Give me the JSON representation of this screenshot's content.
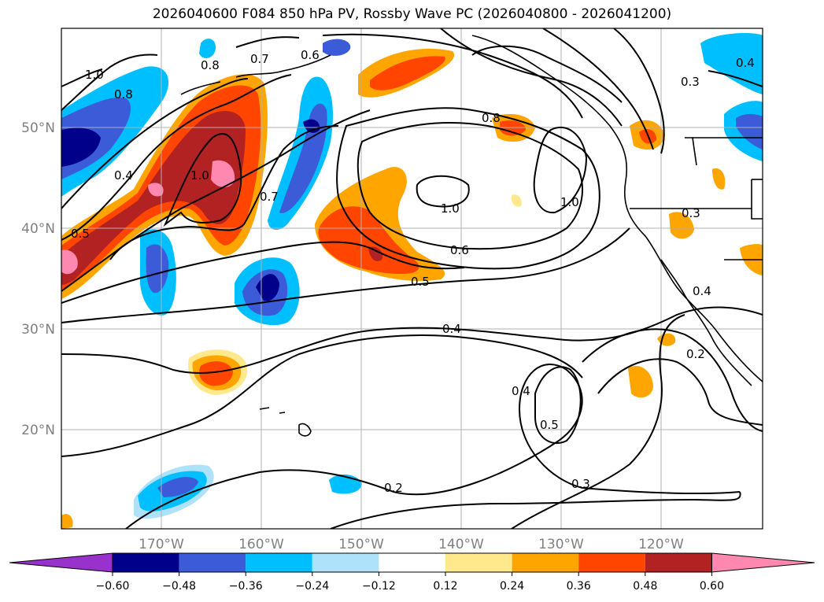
{
  "title": "2026040600 F084 850 hPa PV, Rossby Wave PC (2026040800 - 2026041200)",
  "map": {
    "lat_labels": [
      "50°N",
      "40°N",
      "30°N",
      "20°N"
    ],
    "lon_labels": [
      "170°W",
      "160°W",
      "150°W",
      "140°W",
      "130°W",
      "120°W"
    ]
  },
  "contour_labels": [
    "1.0",
    "0.8",
    "0.7",
    "0.6",
    "0.8",
    "0.4",
    "0.5",
    "1.0",
    "0.7",
    "1.0",
    "0.6",
    "0.5",
    "0.4",
    "0.8",
    "1.0",
    "0.3",
    "0.3",
    "0.4",
    "0.4",
    "0.5",
    "0.3",
    "0.2",
    "0.2",
    "0.4"
  ],
  "colorbar": {
    "ticks": [
      "−0.60",
      "−0.48",
      "−0.36",
      "−0.24",
      "−0.12",
      "0.12",
      "0.24",
      "0.36",
      "0.48",
      "0.60"
    ],
    "colors": [
      "#9932cc",
      "#00008b",
      "#3b5bd9",
      "#00bfff",
      "#aee2fa",
      "#ffffff",
      "#ffe98c",
      "#ffa500",
      "#ff4500",
      "#b22222",
      "#ff88b0"
    ]
  }
}
